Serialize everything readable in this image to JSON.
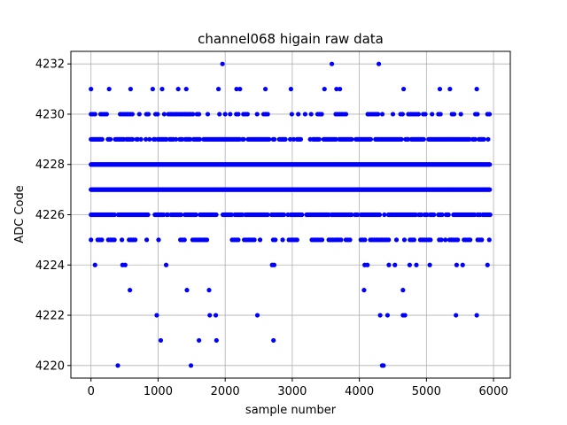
{
  "chart_data": {
    "type": "scatter",
    "title": "channel068 higain raw data",
    "xlabel": "sample number",
    "ylabel": "ADC Code",
    "xlim": [
      -300,
      6250
    ],
    "ylim": [
      4219.5,
      4232.5
    ],
    "xticks": [
      0,
      1000,
      2000,
      3000,
      4000,
      5000,
      6000
    ],
    "yticks": [
      4220,
      4222,
      4224,
      4226,
      4228,
      4230,
      4232
    ],
    "grid": true,
    "marker_color": "#0000ff",
    "dense_bands": [
      {
        "y": 4228,
        "x_range": [
          0,
          5950
        ],
        "density": "solid"
      },
      {
        "y": 4227,
        "x_range": [
          0,
          5950
        ],
        "density": "solid"
      },
      {
        "y": 4226,
        "x_range": [
          0,
          5950
        ],
        "density": "dense"
      },
      {
        "y": 4229,
        "x_range": [
          0,
          5950
        ],
        "density": "dense"
      },
      {
        "y": 4230,
        "x_range": [
          0,
          5950
        ],
        "density": "medium"
      },
      {
        "y": 4225,
        "x_range": [
          0,
          5950
        ],
        "density": "medium"
      }
    ],
    "sparse_points": [
      {
        "x": 0,
        "y": 4231
      },
      {
        "x": 270,
        "y": 4231
      },
      {
        "x": 590,
        "y": 4231
      },
      {
        "x": 920,
        "y": 4231
      },
      {
        "x": 1060,
        "y": 4231
      },
      {
        "x": 1300,
        "y": 4231
      },
      {
        "x": 1420,
        "y": 4231
      },
      {
        "x": 1900,
        "y": 4231
      },
      {
        "x": 2170,
        "y": 4231
      },
      {
        "x": 2220,
        "y": 4231
      },
      {
        "x": 2600,
        "y": 4231
      },
      {
        "x": 2980,
        "y": 4231
      },
      {
        "x": 3480,
        "y": 4231
      },
      {
        "x": 3660,
        "y": 4231
      },
      {
        "x": 3710,
        "y": 4231
      },
      {
        "x": 4660,
        "y": 4231
      },
      {
        "x": 5200,
        "y": 4231
      },
      {
        "x": 5350,
        "y": 4231
      },
      {
        "x": 5750,
        "y": 4231
      },
      {
        "x": 1960,
        "y": 4232
      },
      {
        "x": 3590,
        "y": 4232
      },
      {
        "x": 4290,
        "y": 4232
      },
      {
        "x": 60,
        "y": 4224
      },
      {
        "x": 470,
        "y": 4224
      },
      {
        "x": 510,
        "y": 4224
      },
      {
        "x": 1120,
        "y": 4224
      },
      {
        "x": 2700,
        "y": 4224
      },
      {
        "x": 2730,
        "y": 4224
      },
      {
        "x": 4080,
        "y": 4224
      },
      {
        "x": 4120,
        "y": 4224
      },
      {
        "x": 4440,
        "y": 4224
      },
      {
        "x": 4530,
        "y": 4224
      },
      {
        "x": 4750,
        "y": 4224
      },
      {
        "x": 4850,
        "y": 4224
      },
      {
        "x": 5050,
        "y": 4224
      },
      {
        "x": 5450,
        "y": 4224
      },
      {
        "x": 5540,
        "y": 4224
      },
      {
        "x": 5910,
        "y": 4224
      },
      {
        "x": 580,
        "y": 4223
      },
      {
        "x": 1430,
        "y": 4223
      },
      {
        "x": 1760,
        "y": 4223
      },
      {
        "x": 4070,
        "y": 4223
      },
      {
        "x": 4650,
        "y": 4223
      },
      {
        "x": 980,
        "y": 4222
      },
      {
        "x": 1770,
        "y": 4222
      },
      {
        "x": 1860,
        "y": 4222
      },
      {
        "x": 2480,
        "y": 4222
      },
      {
        "x": 4310,
        "y": 4222
      },
      {
        "x": 4420,
        "y": 4222
      },
      {
        "x": 4650,
        "y": 4222
      },
      {
        "x": 4680,
        "y": 4222
      },
      {
        "x": 5440,
        "y": 4222
      },
      {
        "x": 5750,
        "y": 4222
      },
      {
        "x": 1040,
        "y": 4221
      },
      {
        "x": 1610,
        "y": 4221
      },
      {
        "x": 1870,
        "y": 4221
      },
      {
        "x": 2720,
        "y": 4221
      },
      {
        "x": 400,
        "y": 4220
      },
      {
        "x": 1490,
        "y": 4220
      },
      {
        "x": 4340,
        "y": 4220
      },
      {
        "x": 4360,
        "y": 4220
      }
    ]
  }
}
